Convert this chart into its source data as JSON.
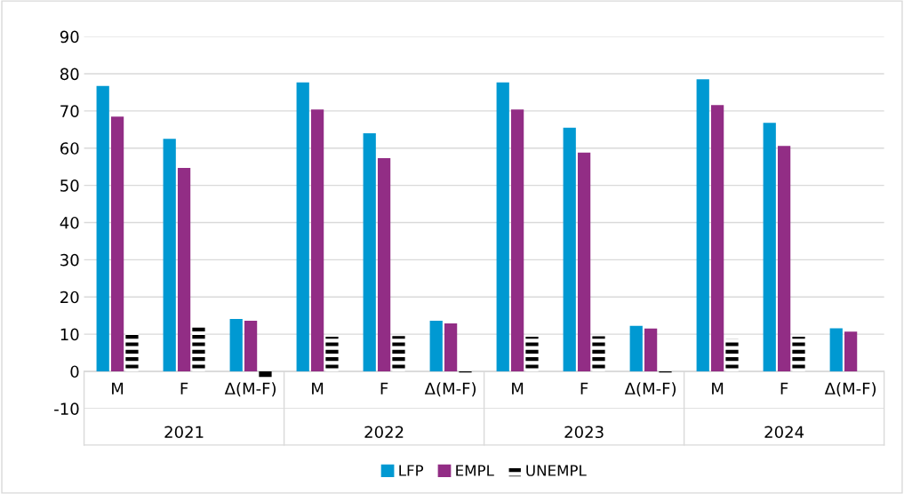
{
  "chart_data": {
    "type": "bar",
    "categories": [
      "M",
      "F",
      "Δ(M-F)",
      "M",
      "F",
      "Δ(M-F)",
      "M",
      "F",
      "Δ(M-F)",
      "M",
      "F",
      "Δ(M-F)"
    ],
    "series": [
      {
        "name": "LFP",
        "color": "#0099d2",
        "values": [
          76.7,
          62.5,
          14.1,
          77.7,
          64.0,
          13.6,
          77.7,
          65.5,
          12.2,
          78.5,
          66.8,
          11.6
        ]
      },
      {
        "name": "EMPL",
        "color": "#922d85",
        "values": [
          68.5,
          54.7,
          13.6,
          70.4,
          57.3,
          12.9,
          70.4,
          58.8,
          11.5,
          71.6,
          60.6,
          10.7
        ]
      },
      {
        "name": "UNEMPL",
        "color": "#000000",
        "values": [
          10.7,
          12.2,
          -1.5,
          9.3,
          9.5,
          -0.3,
          9.3,
          9.4,
          -0.3,
          8.7,
          9.3,
          null
        ]
      }
    ],
    "annotations": [
      "2021",
      "2022",
      "2023",
      "2024"
    ],
    "ylim": [
      -10,
      90
    ],
    "yticks": [
      -10,
      0,
      10,
      20,
      30,
      40,
      50,
      60,
      70,
      80,
      90
    ],
    "grid": "y",
    "legend": "bottom"
  }
}
